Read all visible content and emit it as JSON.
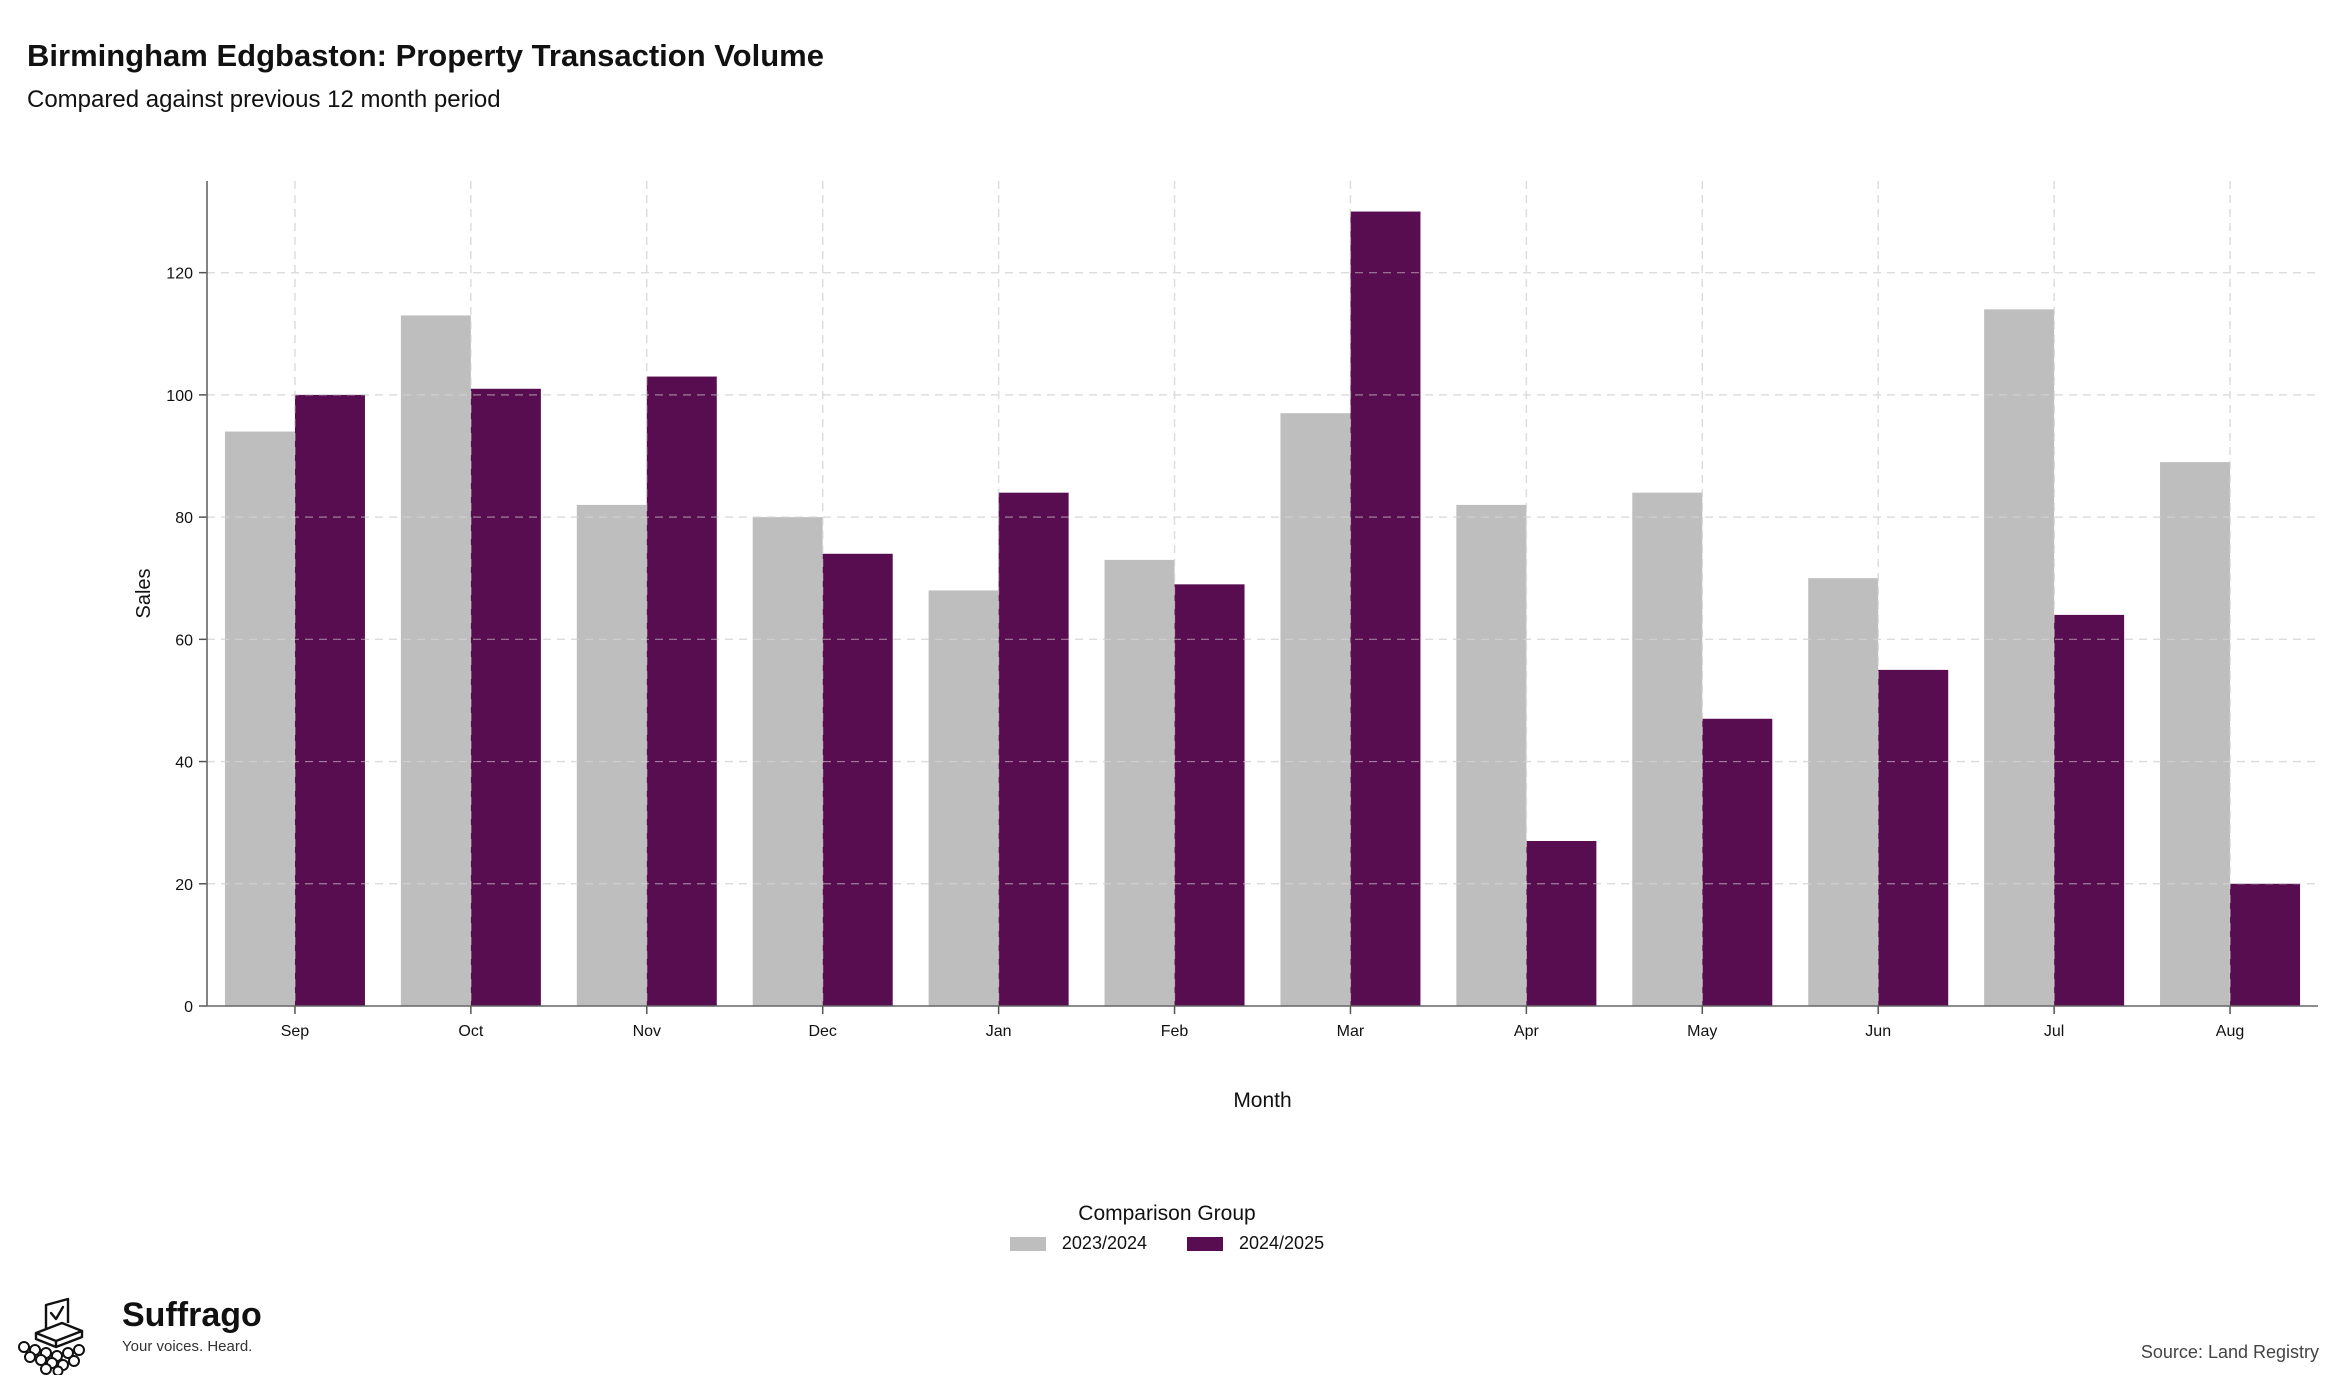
{
  "header": {
    "title": "Birmingham Edgbaston: Property Transaction Volume",
    "subtitle": "Compared against previous 12 month period"
  },
  "legend": {
    "title": "Comparison Group",
    "items": [
      {
        "label": "2023/2024",
        "color": "#bebebe"
      },
      {
        "label": "2024/2025",
        "color": "#570d4f"
      }
    ]
  },
  "brand": {
    "name": "Suffrago",
    "tagline": "Your voices. Heard.",
    "logo_icon": "ballot-box-crowd-icon"
  },
  "footer": {
    "source": "Source: Land Registry"
  },
  "chart_data": {
    "type": "bar",
    "categories": [
      "Sep",
      "Oct",
      "Nov",
      "Dec",
      "Jan",
      "Feb",
      "Mar",
      "Apr",
      "May",
      "Jun",
      "Jul",
      "Aug"
    ],
    "series": [
      {
        "name": "2023/2024",
        "color": "#bebebe",
        "values": [
          94,
          113,
          82,
          80,
          68,
          73,
          97,
          82,
          84,
          70,
          114,
          89
        ]
      },
      {
        "name": "2024/2025",
        "color": "#570d4f",
        "values": [
          100,
          101,
          103,
          74,
          84,
          69,
          130,
          27,
          47,
          55,
          64,
          20
        ]
      }
    ],
    "xlabel": "Month",
    "ylabel": "Sales",
    "ylim": [
      0,
      135
    ],
    "yticks": [
      0,
      20,
      40,
      60,
      80,
      100,
      120
    ],
    "grid": true,
    "legend_position": "bottom"
  }
}
